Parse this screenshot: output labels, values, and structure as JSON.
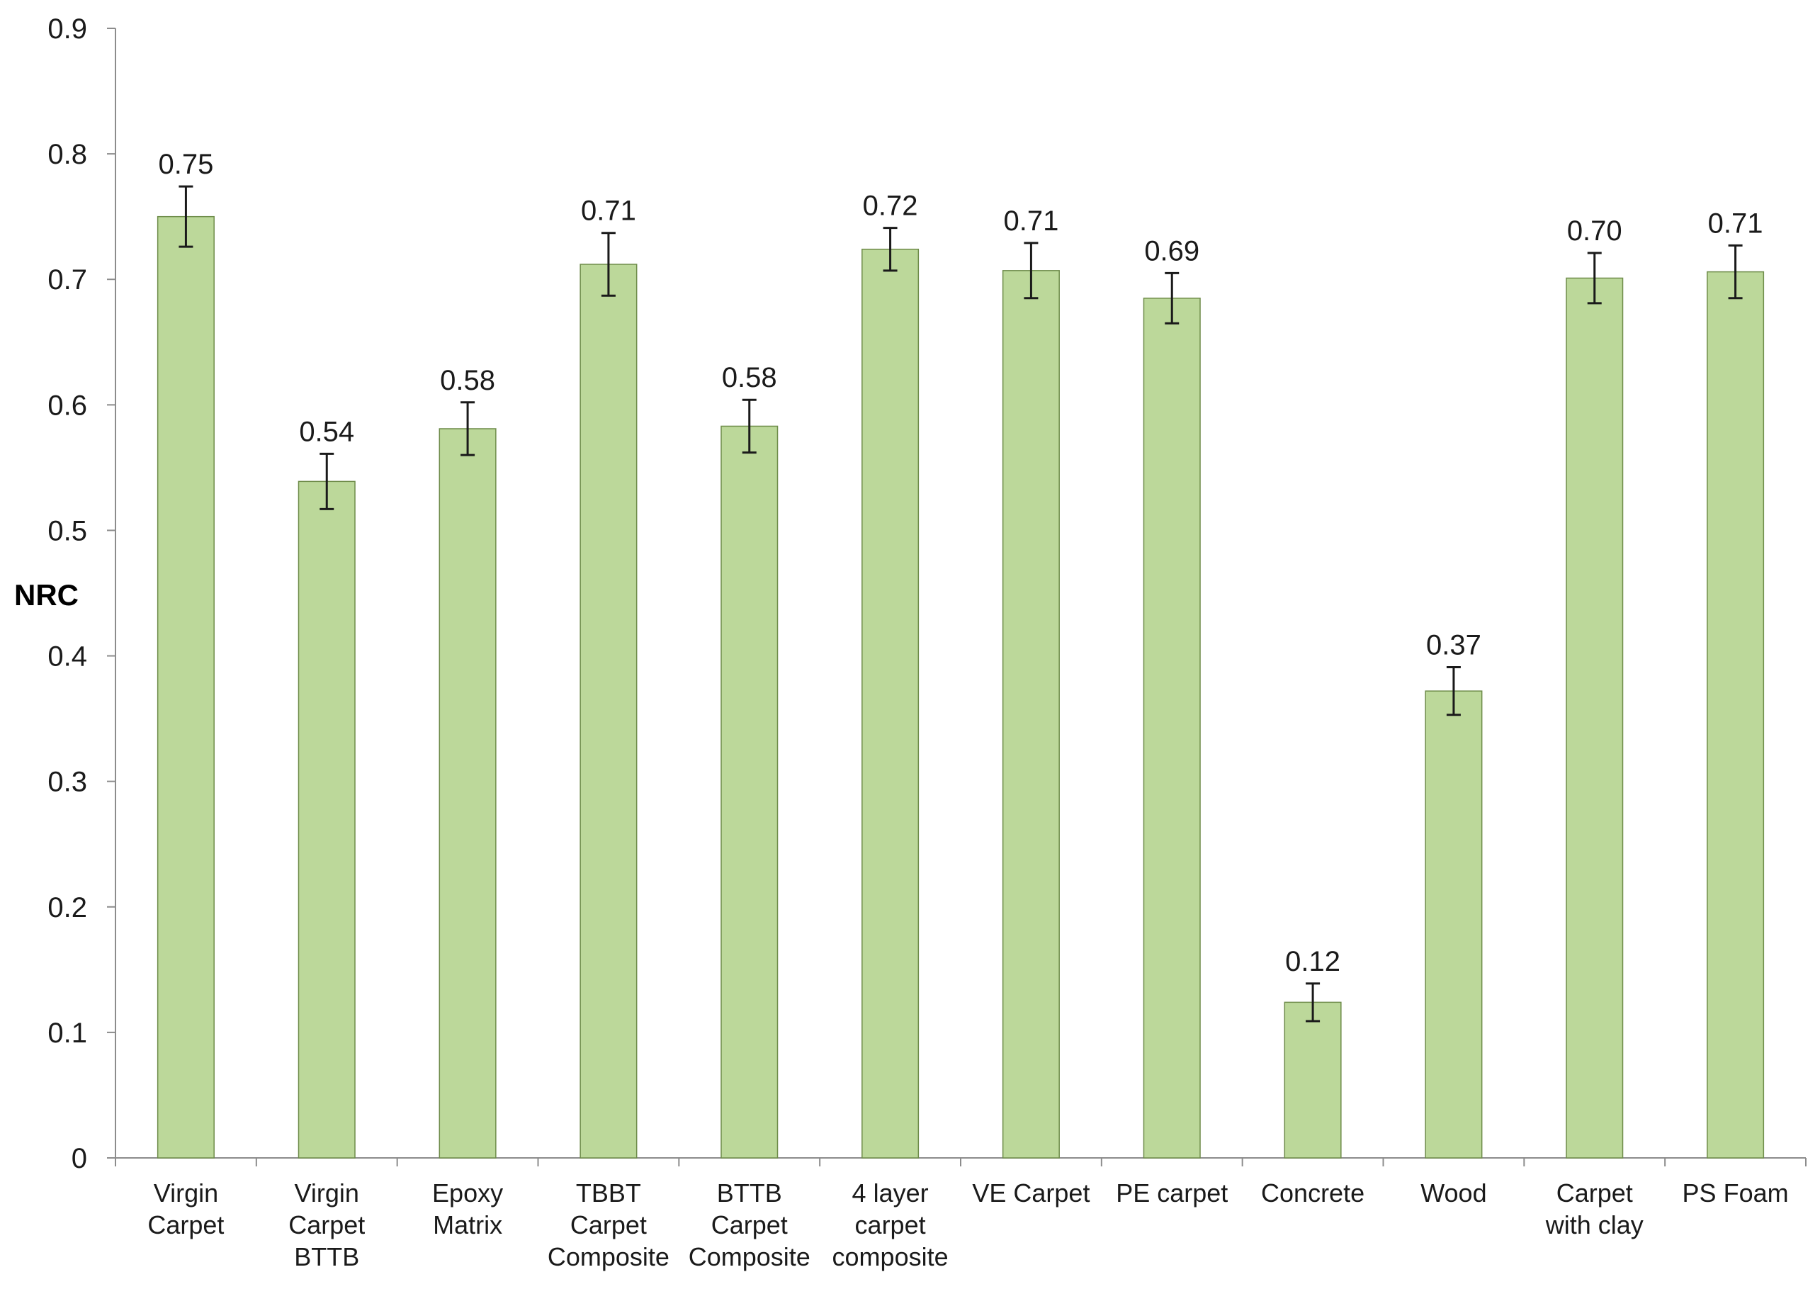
{
  "chart_data": {
    "type": "bar",
    "ylabel": "NRC",
    "xlabel": "",
    "ylim": [
      0,
      0.9
    ],
    "yticks": [
      "0",
      "0.1",
      "0.2",
      "0.3",
      "0.4",
      "0.5",
      "0.6",
      "0.7",
      "0.8",
      "0.9"
    ],
    "grid": false,
    "legend": "none",
    "categories": [
      [
        "Virgin",
        "Carpet"
      ],
      [
        "Virgin",
        "Carpet",
        "BTTB"
      ],
      [
        "Epoxy",
        "Matrix"
      ],
      [
        "TBBT",
        "Carpet",
        "Composite"
      ],
      [
        "BTTB",
        "Carpet",
        "Composite"
      ],
      [
        "4 layer",
        "carpet",
        "composite"
      ],
      [
        "VE Carpet"
      ],
      [
        "PE carpet"
      ],
      [
        "Concrete"
      ],
      [
        "Wood"
      ],
      [
        "Carpet",
        "with clay"
      ],
      [
        "PS Foam"
      ]
    ],
    "series": [
      {
        "values": [
          0.75,
          0.539,
          0.581,
          0.712,
          0.583,
          0.724,
          0.707,
          0.685,
          0.124,
          0.372,
          0.701,
          0.706
        ],
        "error": [
          0.024,
          0.022,
          0.021,
          0.025,
          0.021,
          0.017,
          0.022,
          0.02,
          0.015,
          0.019,
          0.02,
          0.021
        ],
        "data_labels": [
          "0.75",
          "0.54",
          "0.58",
          "0.71",
          "0.58",
          "0.72",
          "0.71",
          "0.69",
          "0.12",
          "0.37",
          "0.70",
          "0.71"
        ]
      }
    ],
    "colors": {
      "bar_fill": "#bcd89a",
      "bar_stroke": "#6e8c4a",
      "axis": "#8c8c8c",
      "error_bar": "#1a1a1a"
    }
  }
}
